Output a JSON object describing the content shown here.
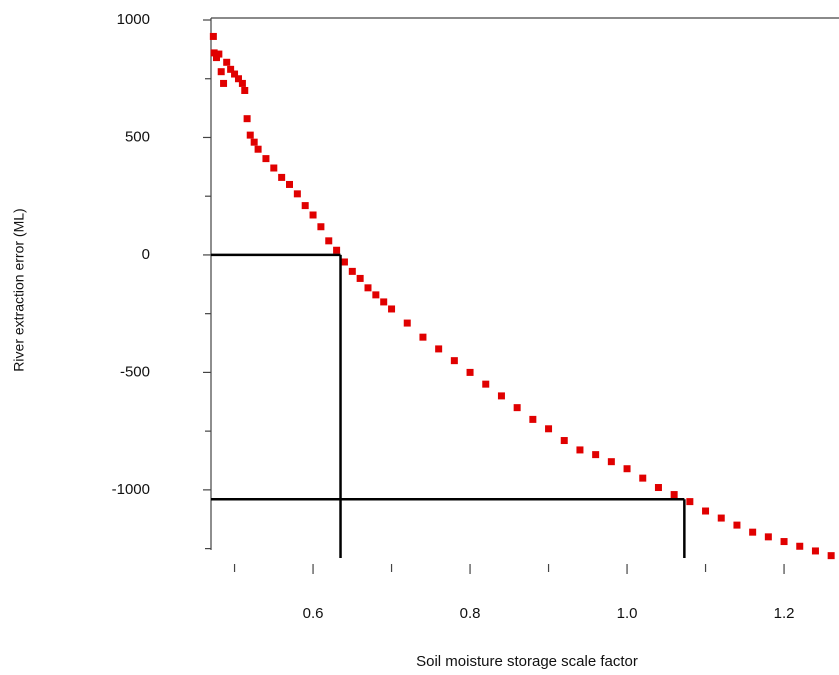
{
  "chart_data": {
    "type": "scatter",
    "x_label": "Soil moisture storage scale factor",
    "y_label": "River extraction error (ML)",
    "xlim": [
      0.47,
      1.27
    ],
    "ylim": [
      -1290,
      1000
    ],
    "xticks": [
      0.6,
      0.8,
      {
        "value": 1,
        "label": "1.0"
      },
      1.2
    ],
    "x_minor_ticks": [
      0.5,
      0.7,
      0.9,
      1.1
    ],
    "yticks": [
      1000,
      500,
      0,
      -500,
      -1000
    ],
    "y_minor_ticks": [
      750,
      250,
      -250,
      -750,
      -1250
    ],
    "color": "#e00000",
    "reference_lines": [
      {
        "x": 0.635,
        "y": 0
      },
      {
        "x": 1.073,
        "y": -1040
      }
    ],
    "reference_color": "#000000",
    "x": [
      0.473,
      0.474,
      0.477,
      0.48,
      0.483,
      0.486,
      0.49,
      0.495,
      0.5,
      0.505,
      0.51,
      0.513,
      0.516,
      0.52,
      0.525,
      0.53,
      0.54,
      0.55,
      0.56,
      0.57,
      0.58,
      0.59,
      0.6,
      0.61,
      0.62,
      0.63,
      0.64,
      0.65,
      0.66,
      0.67,
      0.68,
      0.69,
      0.7,
      0.72,
      0.74,
      0.76,
      0.78,
      0.8,
      0.82,
      0.84,
      0.86,
      0.88,
      0.9,
      0.92,
      0.94,
      0.96,
      0.98,
      1.0,
      1.02,
      1.04,
      1.06,
      1.08,
      1.1,
      1.12,
      1.14,
      1.16,
      1.18,
      1.2,
      1.22,
      1.24,
      1.26
    ],
    "values": [
      930,
      860,
      840,
      855,
      780,
      730,
      820,
      790,
      770,
      750,
      730,
      700,
      580,
      510,
      480,
      450,
      410,
      370,
      330,
      300,
      260,
      210,
      170,
      120,
      60,
      20,
      -30,
      -70,
      -100,
      -140,
      -170,
      -200,
      -230,
      -290,
      -350,
      -400,
      -450,
      -500,
      -550,
      -600,
      -650,
      -700,
      -740,
      -790,
      -830,
      -850,
      -880,
      -910,
      -950,
      -990,
      -1020,
      -1050,
      -1090,
      -1120,
      -1150,
      -1180,
      -1200,
      -1220,
      -1240,
      -1260,
      -1280
    ]
  }
}
